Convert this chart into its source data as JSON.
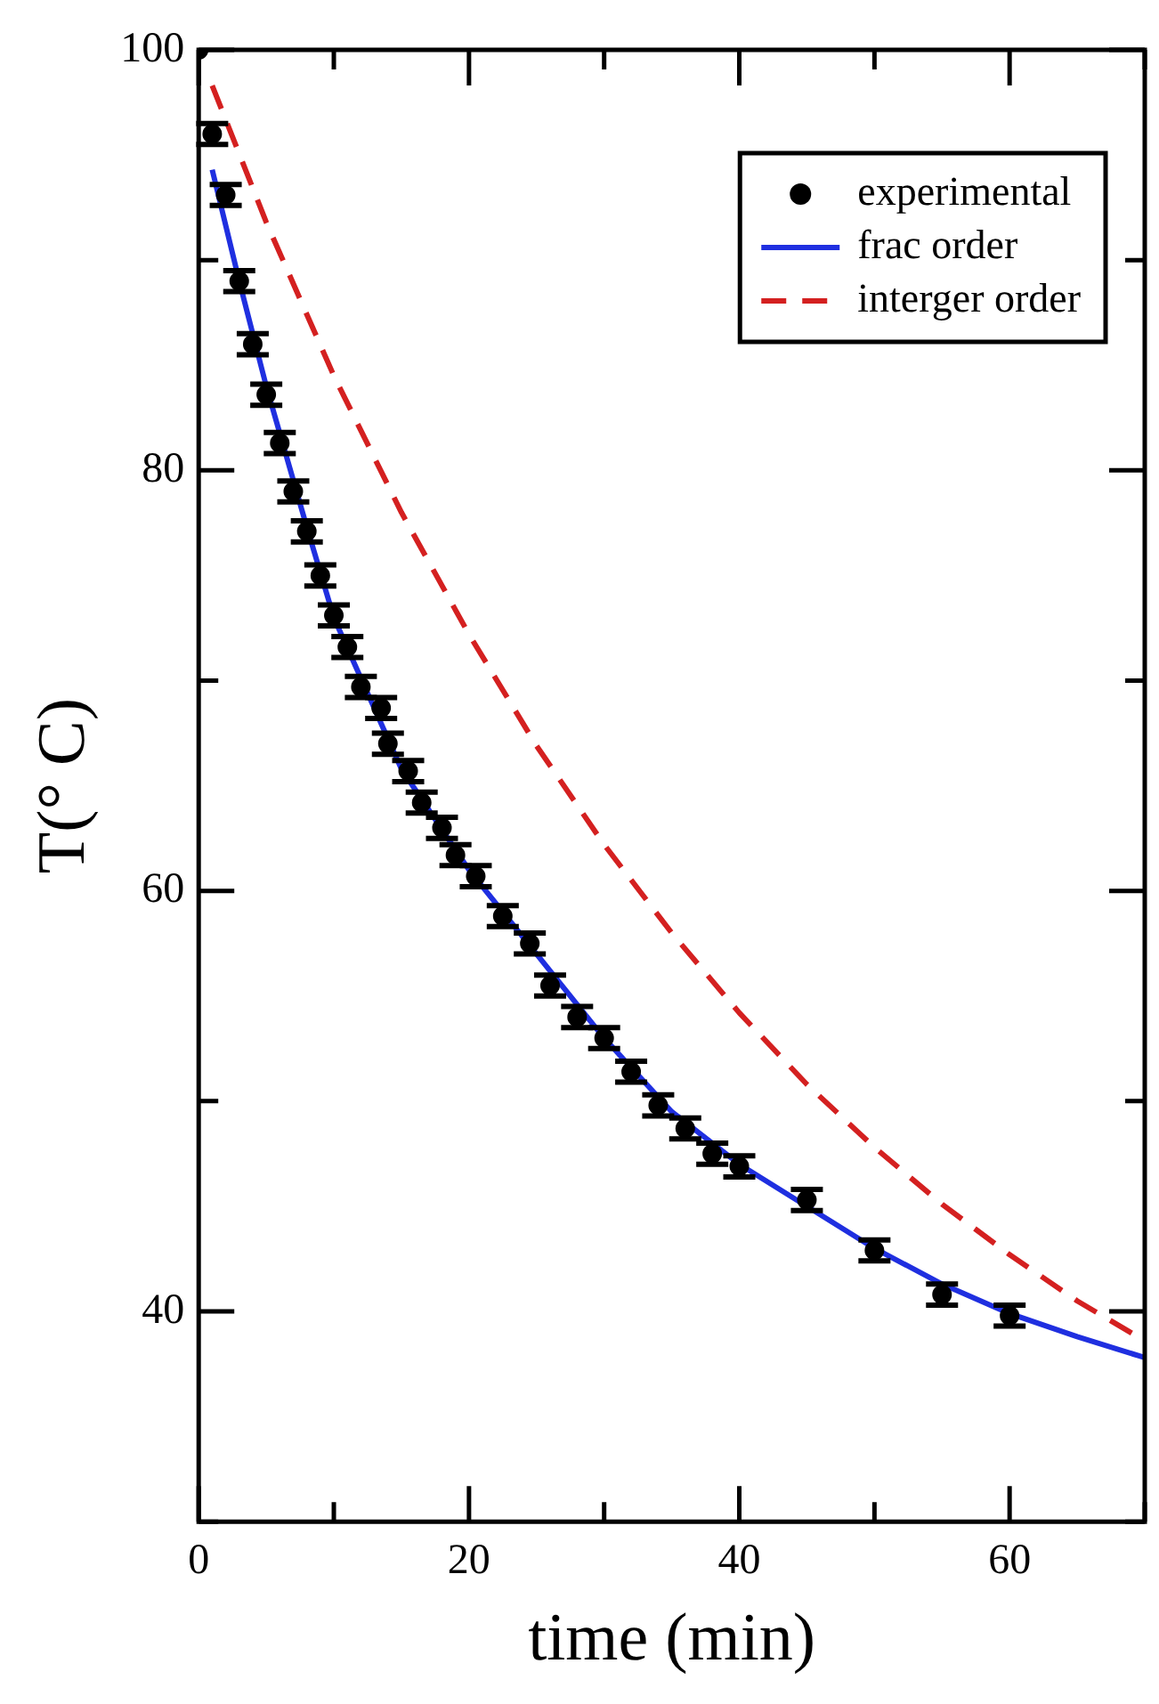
{
  "chart_data": {
    "type": "scatter",
    "xlabel": "time (min)",
    "ylabel": "T(° C)",
    "xlim": [
      0,
      70
    ],
    "ylim": [
      30,
      100
    ],
    "xticks": [
      0,
      {
        "value": 10,
        "label": null
      },
      20,
      {
        "value": 30,
        "label": null
      },
      40,
      {
        "value": 50,
        "label": null
      },
      60,
      {
        "value": 70,
        "label": null
      }
    ],
    "yticks": [
      {
        "value": 30,
        "label": null
      },
      40,
      {
        "value": 50,
        "label": null
      },
      60,
      {
        "value": 70,
        "label": null
      },
      80,
      {
        "value": 90,
        "label": null
      },
      100
    ],
    "grid": false,
    "legend": "top right",
    "series": [
      {
        "name": "experimental",
        "marker": "circle",
        "color": "#000000",
        "x": [
          0,
          1,
          2,
          3,
          4,
          5,
          6,
          7,
          8,
          9,
          10,
          11,
          12,
          13.5,
          14,
          15.5,
          16.5,
          18,
          19,
          20.5,
          22.5,
          24.5,
          26,
          28,
          30,
          32,
          34,
          36,
          38,
          40,
          45,
          50,
          55,
          60
        ],
        "values": [
          100,
          96,
          93.1,
          89,
          86,
          83.6,
          81.3,
          79,
          77.1,
          75,
          73.1,
          71.6,
          69.7,
          68.7,
          67,
          65.7,
          64.2,
          63,
          61.7,
          60.7,
          58.8,
          57.5,
          55.5,
          54,
          53,
          51.4,
          49.8,
          48.7,
          47.5,
          46.9,
          45.3,
          42.9,
          40.8,
          39.8
        ],
        "errors": [
          null,
          0.5,
          0.5,
          0.5,
          0.5,
          0.5,
          0.5,
          0.5,
          0.5,
          0.5,
          0.5,
          0.5,
          0.5,
          0.5,
          0.5,
          0.5,
          0.5,
          0.5,
          0.5,
          0.5,
          0.5,
          0.5,
          0.5,
          0.5,
          0.5,
          0.5,
          0.5,
          0.5,
          0.5,
          0.5,
          0.5,
          0.5,
          0.5,
          0.5
        ]
      },
      {
        "name": "frac order",
        "type": "line",
        "line_style": "solid",
        "marker": "none",
        "color": "#1f2fe0",
        "x": [
          1,
          3,
          5,
          8,
          10,
          15,
          20,
          25,
          30,
          35,
          40,
          45,
          50,
          55,
          60,
          65,
          70
        ],
        "values": [
          94.3,
          89,
          84,
          77.3,
          73,
          65.8,
          61,
          57,
          53,
          49.5,
          47,
          45,
          43,
          41.3,
          39.9,
          38.8,
          37.8
        ]
      },
      {
        "name": "interger order",
        "type": "line",
        "line_style": "dashed",
        "marker": "none",
        "color": "#d42020",
        "x": [
          1,
          5,
          10,
          15,
          20,
          25,
          30,
          35,
          40,
          45,
          50,
          55,
          60,
          65,
          70
        ],
        "values": [
          98.3,
          91.8,
          84.5,
          78,
          72.2,
          66.9,
          62.2,
          58,
          54.2,
          50.8,
          47.8,
          45.1,
          42.7,
          40.5,
          38.6
        ]
      }
    ]
  }
}
